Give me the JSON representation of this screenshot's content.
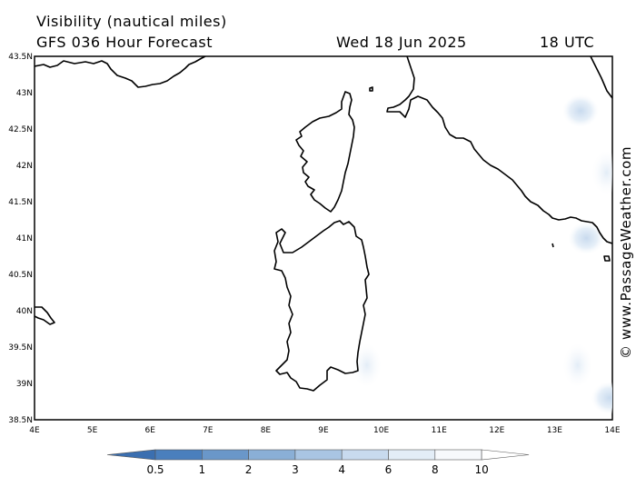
{
  "header": {
    "title": "Visibility (nautical miles)",
    "model": "GFS 036 Hour Forecast",
    "date": "Wed 18 Jun 2025",
    "time": "18 UTC"
  },
  "map": {
    "lon_ticks": [
      "4E",
      "5E",
      "6E",
      "7E",
      "8E",
      "9E",
      "10E",
      "11E",
      "12E",
      "13E",
      "14E"
    ],
    "lat_ticks": [
      "43.5N",
      "43N",
      "42.5N",
      "42N",
      "41.5N",
      "41N",
      "40.5N",
      "40N",
      "39.5N",
      "39N",
      "38.5N"
    ],
    "lon_range": [
      4,
      14
    ],
    "lat_range": [
      38.5,
      43.5
    ],
    "low_visibility_areas": [
      {
        "lon": 13.45,
        "lat": 42.75,
        "class": "6-8"
      },
      {
        "lon": 13.9,
        "lat": 41.9,
        "class": "8-10"
      },
      {
        "lon": 13.55,
        "lat": 41.0,
        "class": "6-8"
      },
      {
        "lon": 13.4,
        "lat": 39.25,
        "class": "8-10"
      },
      {
        "lon": 13.95,
        "lat": 38.8,
        "class": "6-8"
      },
      {
        "lon": 9.75,
        "lat": 39.25,
        "class": "8-10"
      }
    ]
  },
  "legend": {
    "labels": [
      "0.5",
      "1",
      "2",
      "3",
      "4",
      "6",
      "8",
      "10"
    ],
    "colors": [
      "#3b6fb0",
      "#4a7fbd",
      "#6a97c9",
      "#8aafd6",
      "#a9c5e3",
      "#c8daee",
      "#e3edf7",
      "#f7f9fc",
      "#ffffff"
    ]
  },
  "credit": "© www.PassageWeather.com"
}
